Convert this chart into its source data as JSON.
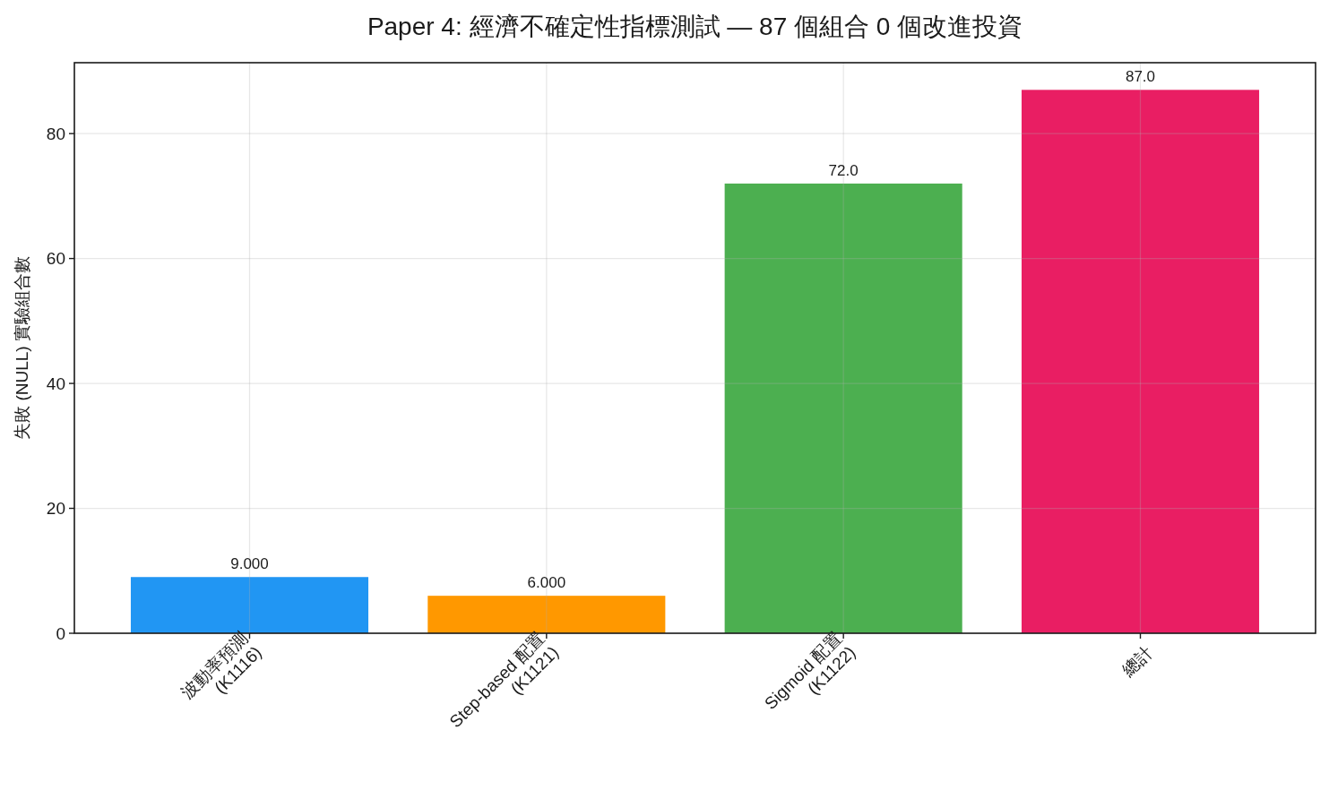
{
  "chart_data": {
    "type": "bar",
    "title": "Paper 4: 經濟不確定性指標測試 — 87 個組合 0 個改進投資",
    "ylabel": "失敗 (NULL) 實驗組合數",
    "categories": [
      "波動率預測\n(K1116)",
      "Step-based 配置\n(K1121)",
      "Sigmoid 配置\n(K1122)",
      "總計"
    ],
    "values": [
      9,
      6,
      72,
      87
    ],
    "colors": [
      "#2196f3",
      "#ff9800",
      "#4caf50",
      "#e91e63"
    ],
    "value_labels": [
      "9.000",
      "6.000",
      "72.0",
      "87.0"
    ],
    "ylim": [
      0,
      91.35
    ],
    "yticks": [
      0,
      20,
      40,
      60,
      80
    ],
    "grid": true
  }
}
